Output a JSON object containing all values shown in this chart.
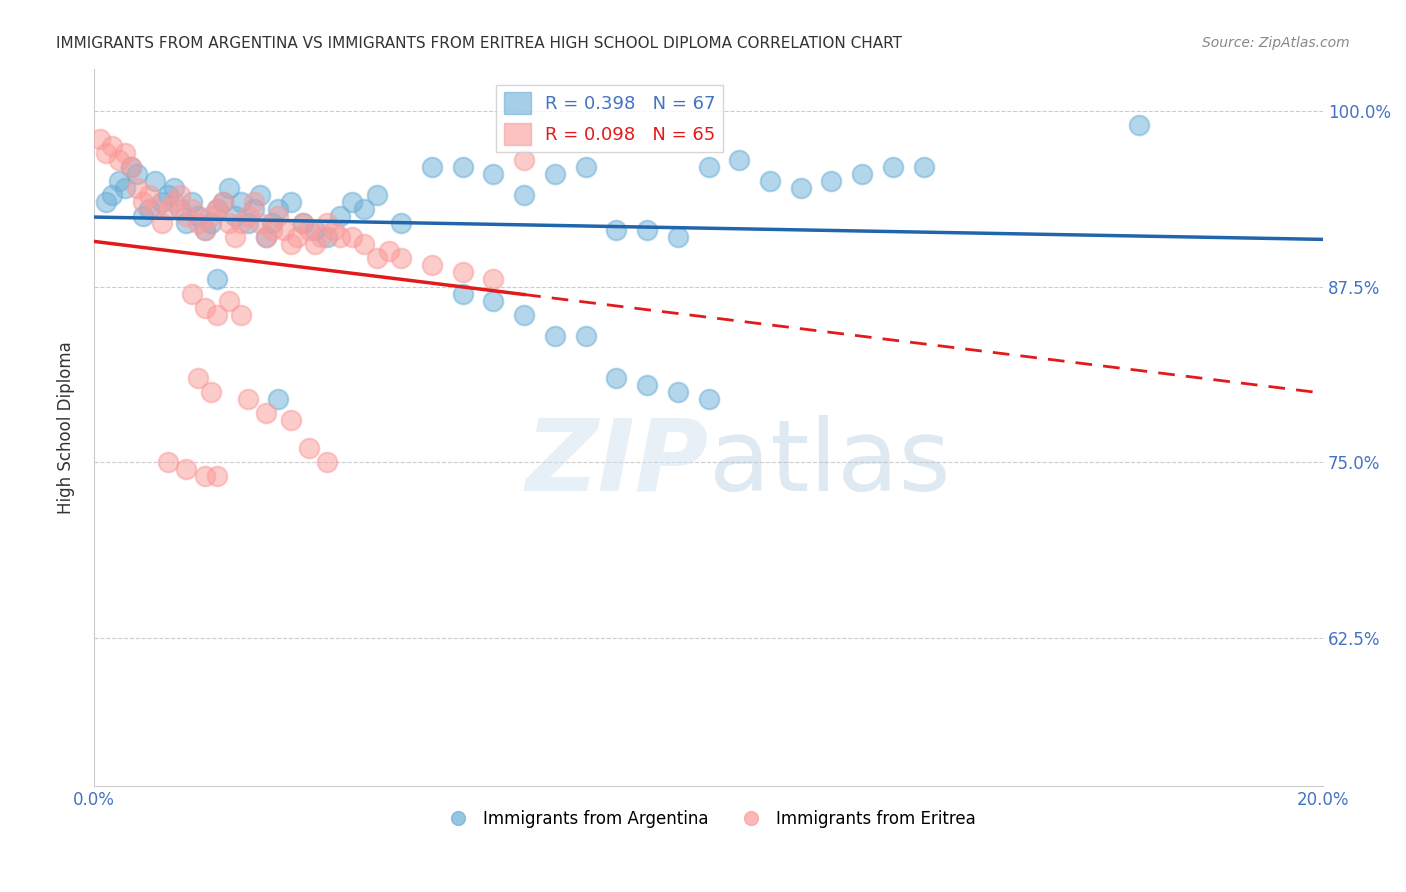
{
  "title": "IMMIGRANTS FROM ARGENTINA VS IMMIGRANTS FROM ERITREA HIGH SCHOOL DIPLOMA CORRELATION CHART",
  "source": "Source: ZipAtlas.com",
  "ylabel": "High School Diploma",
  "ytick_labels": [
    "100.0%",
    "87.5%",
    "75.0%",
    "62.5%"
  ],
  "ytick_values": [
    1.0,
    0.875,
    0.75,
    0.625
  ],
  "xlim": [
    0.0,
    0.2
  ],
  "ylim": [
    0.52,
    1.03
  ],
  "legend_blue": "R = 0.398   N = 67",
  "legend_pink": "R = 0.098   N = 65",
  "legend_label_blue": "Immigrants from Argentina",
  "legend_label_pink": "Immigrants from Eritrea",
  "color_blue": "#6baed6",
  "color_pink": "#fb9a99",
  "color_blue_line": "#2166ac",
  "color_pink_line": "#e31a1c",
  "argentina_x": [
    0.002,
    0.003,
    0.004,
    0.005,
    0.006,
    0.007,
    0.008,
    0.009,
    0.01,
    0.011,
    0.012,
    0.013,
    0.014,
    0.015,
    0.016,
    0.017,
    0.018,
    0.019,
    0.02,
    0.021,
    0.022,
    0.023,
    0.024,
    0.025,
    0.026,
    0.027,
    0.028,
    0.029,
    0.03,
    0.032,
    0.034,
    0.036,
    0.038,
    0.04,
    0.042,
    0.044,
    0.046,
    0.05,
    0.055,
    0.06,
    0.065,
    0.07,
    0.075,
    0.08,
    0.085,
    0.09,
    0.095,
    0.1,
    0.105,
    0.11,
    0.115,
    0.12,
    0.125,
    0.13,
    0.135,
    0.06,
    0.065,
    0.07,
    0.075,
    0.08,
    0.085,
    0.09,
    0.095,
    0.1,
    0.17,
    0.02,
    0.03
  ],
  "argentina_y": [
    0.935,
    0.94,
    0.95,
    0.945,
    0.96,
    0.955,
    0.925,
    0.93,
    0.95,
    0.935,
    0.94,
    0.945,
    0.93,
    0.92,
    0.935,
    0.925,
    0.915,
    0.92,
    0.93,
    0.935,
    0.945,
    0.925,
    0.935,
    0.92,
    0.93,
    0.94,
    0.91,
    0.92,
    0.93,
    0.935,
    0.92,
    0.915,
    0.91,
    0.925,
    0.935,
    0.93,
    0.94,
    0.92,
    0.96,
    0.96,
    0.955,
    0.94,
    0.955,
    0.96,
    0.915,
    0.915,
    0.91,
    0.96,
    0.965,
    0.95,
    0.945,
    0.95,
    0.955,
    0.96,
    0.96,
    0.87,
    0.865,
    0.855,
    0.84,
    0.84,
    0.81,
    0.805,
    0.8,
    0.795,
    0.99,
    0.88,
    0.795
  ],
  "eritrea_x": [
    0.001,
    0.002,
    0.003,
    0.004,
    0.005,
    0.006,
    0.007,
    0.008,
    0.009,
    0.01,
    0.011,
    0.012,
    0.013,
    0.014,
    0.015,
    0.016,
    0.017,
    0.018,
    0.019,
    0.02,
    0.021,
    0.022,
    0.023,
    0.024,
    0.025,
    0.026,
    0.027,
    0.028,
    0.029,
    0.03,
    0.031,
    0.032,
    0.033,
    0.034,
    0.035,
    0.036,
    0.037,
    0.038,
    0.039,
    0.04,
    0.042,
    0.044,
    0.046,
    0.048,
    0.05,
    0.055,
    0.06,
    0.065,
    0.07,
    0.016,
    0.018,
    0.02,
    0.022,
    0.024,
    0.017,
    0.019,
    0.025,
    0.028,
    0.032,
    0.035,
    0.038,
    0.012,
    0.015,
    0.018,
    0.02
  ],
  "eritrea_y": [
    0.98,
    0.97,
    0.975,
    0.965,
    0.97,
    0.96,
    0.945,
    0.935,
    0.94,
    0.93,
    0.92,
    0.93,
    0.935,
    0.94,
    0.925,
    0.93,
    0.92,
    0.915,
    0.925,
    0.93,
    0.935,
    0.92,
    0.91,
    0.92,
    0.925,
    0.935,
    0.92,
    0.91,
    0.915,
    0.925,
    0.915,
    0.905,
    0.91,
    0.92,
    0.915,
    0.905,
    0.91,
    0.92,
    0.915,
    0.91,
    0.91,
    0.905,
    0.895,
    0.9,
    0.895,
    0.89,
    0.885,
    0.88,
    0.965,
    0.87,
    0.86,
    0.855,
    0.865,
    0.855,
    0.81,
    0.8,
    0.795,
    0.785,
    0.78,
    0.76,
    0.75,
    0.75,
    0.745,
    0.74,
    0.74
  ]
}
